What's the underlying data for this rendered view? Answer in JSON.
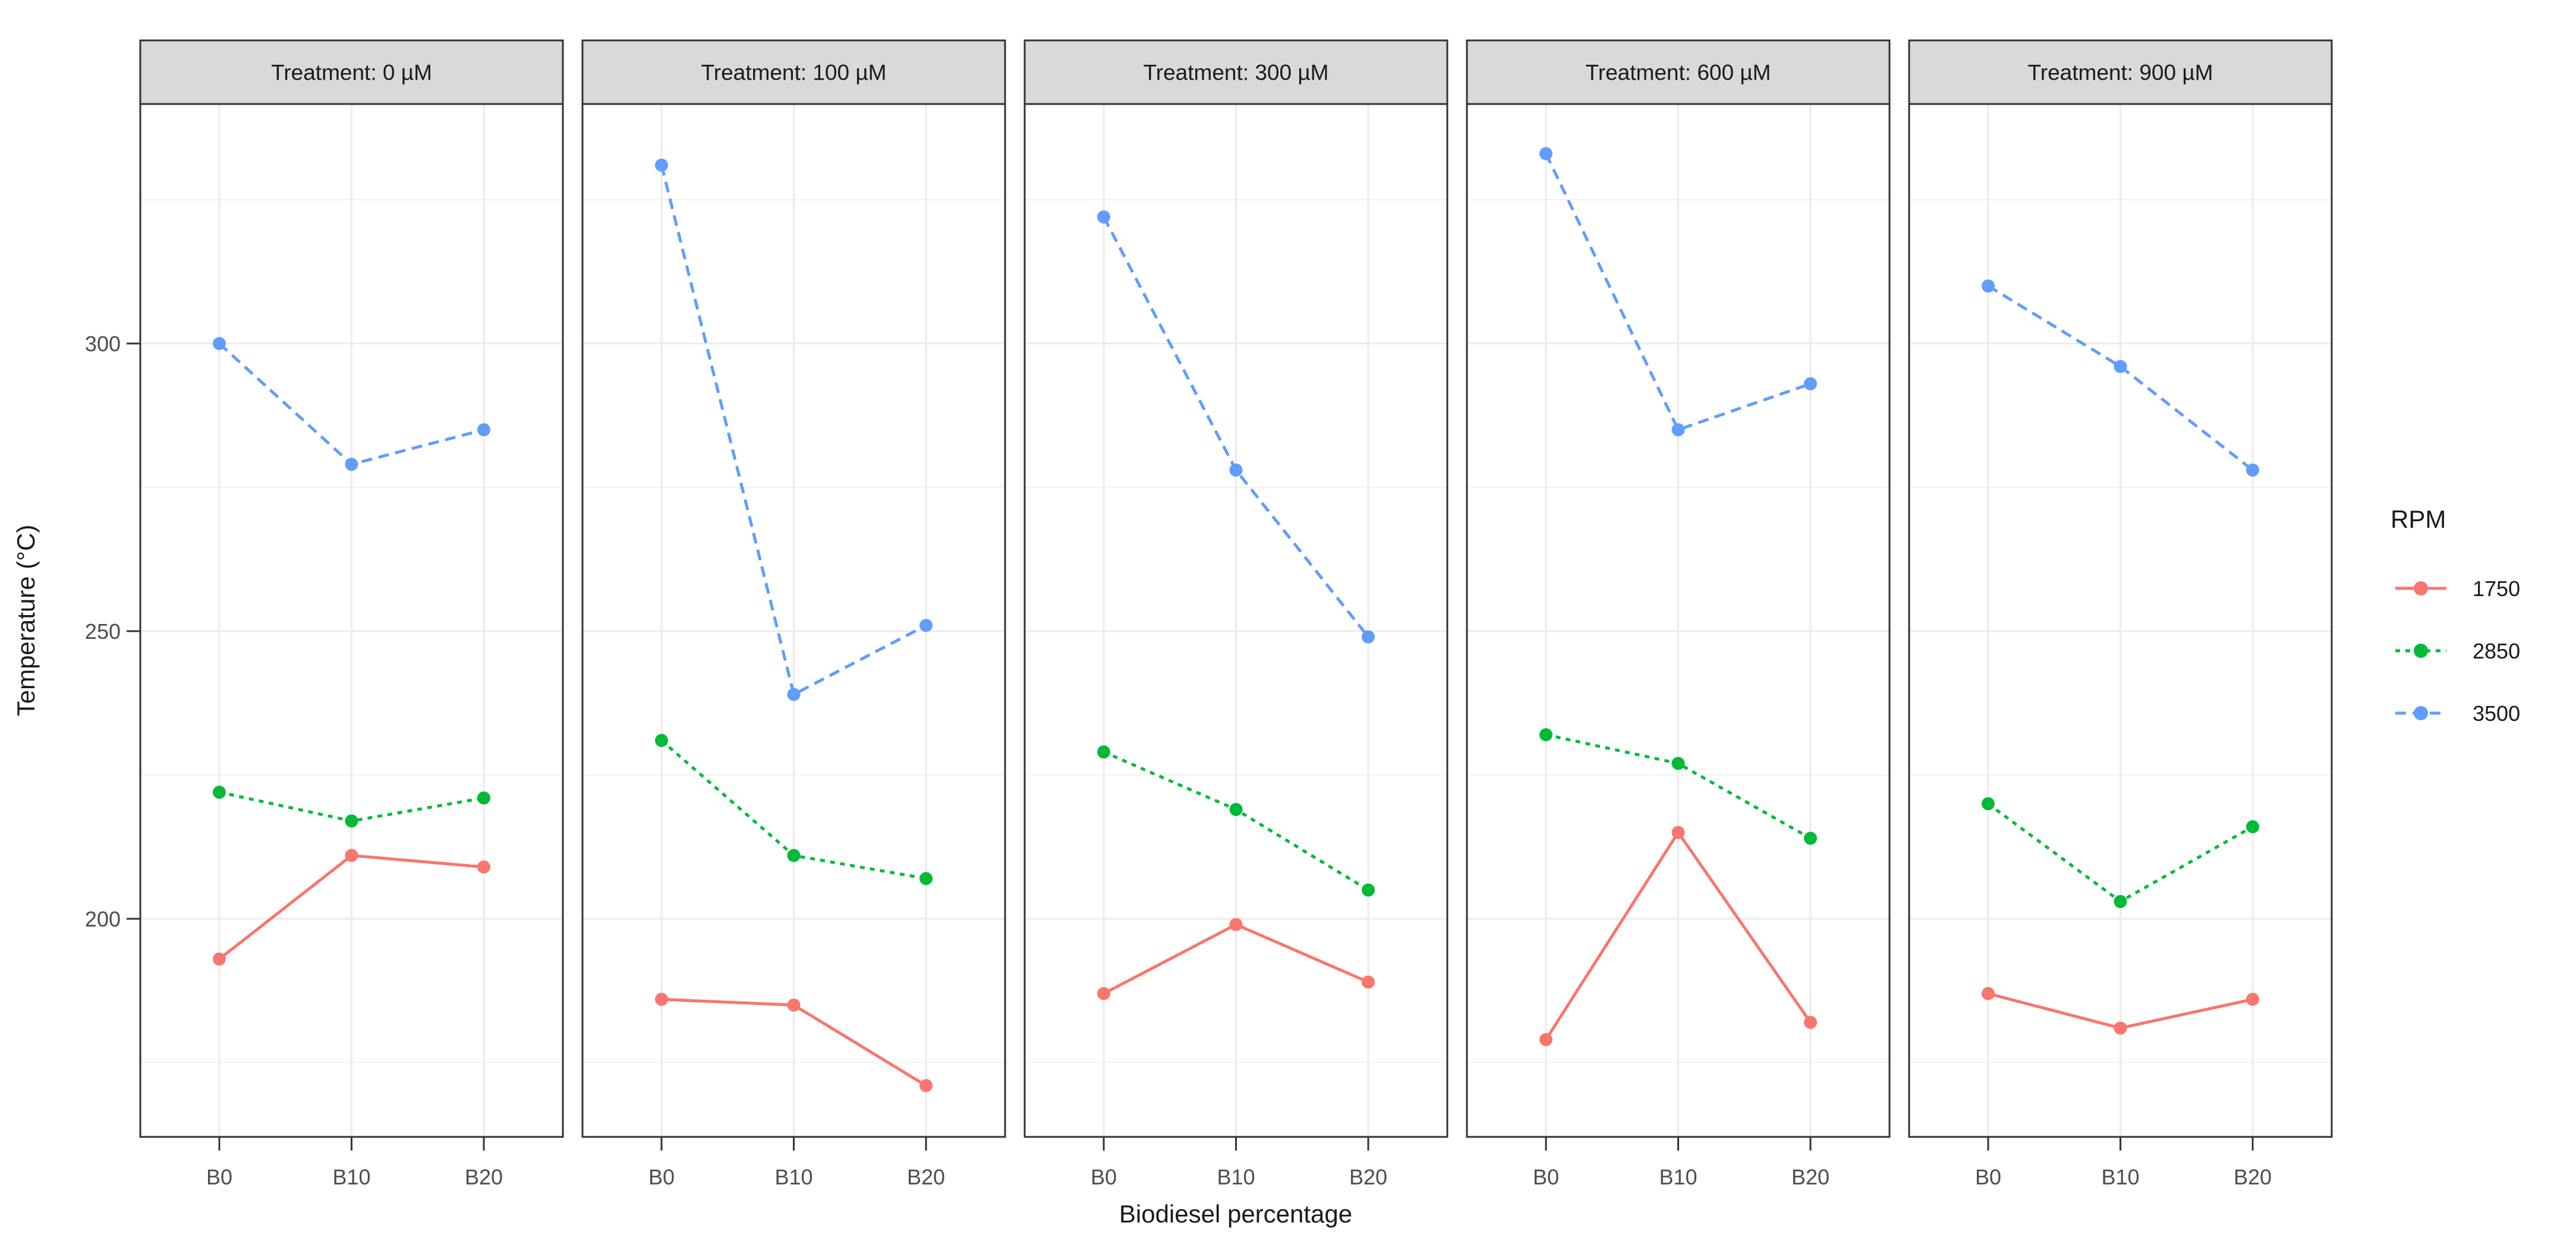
{
  "figure": {
    "kind": "faceted-line-chart",
    "background": "#FFFFFF"
  },
  "chart_data": {
    "type": "line",
    "facet_variable": "Treatment",
    "facets": [
      "Treatment: 0 µM",
      "Treatment: 100 µM",
      "Treatment: 300 µM",
      "Treatment: 600 µM",
      "Treatment: 900 µM"
    ],
    "categories": [
      "B0",
      "B10",
      "B20"
    ],
    "xlabel": "Biodiesel percentage",
    "ylabel": "Temperature (°C)",
    "y_ticks": [
      200,
      250,
      300
    ],
    "y_minor_ticks": [
      175,
      225,
      275,
      325
    ],
    "ylim": [
      162,
      342
    ],
    "grid": "on",
    "legend_title": "RPM",
    "legend_position": "right",
    "series_meta": [
      {
        "name": "1750",
        "color": "#F8766D",
        "linetype": "solid"
      },
      {
        "name": "2850",
        "color": "#00BA38",
        "linetype": "dotted"
      },
      {
        "name": "3500",
        "color": "#619CFF",
        "linetype": "dashed"
      }
    ],
    "values": {
      "Treatment: 0 µM": {
        "1750": [
          193,
          211,
          209
        ],
        "2850": [
          222,
          217,
          221
        ],
        "3500": [
          300,
          279,
          285
        ]
      },
      "Treatment: 100 µM": {
        "1750": [
          186,
          185,
          171
        ],
        "2850": [
          231,
          211,
          207
        ],
        "3500": [
          331,
          239,
          251
        ]
      },
      "Treatment: 300 µM": {
        "1750": [
          187,
          199,
          189
        ],
        "2850": [
          229,
          219,
          205
        ],
        "3500": [
          322,
          278,
          249
        ]
      },
      "Treatment: 600 µM": {
        "1750": [
          179,
          215,
          182
        ],
        "2850": [
          232,
          227,
          214
        ],
        "3500": [
          333,
          285,
          293
        ]
      },
      "Treatment: 900 µM": {
        "1750": [
          187,
          181,
          186
        ],
        "2850": [
          220,
          203,
          216
        ],
        "3500": [
          310,
          296,
          278
        ]
      }
    }
  },
  "colors": {
    "strip_fill": "#D9D9D9",
    "panel_border": "#333333",
    "grid_major": "#EBEBEB",
    "grid_minor": "#F2F2F2",
    "tick_mark": "#333333",
    "tick_text": "#4D4D4D",
    "text": "#1A1A1A"
  }
}
